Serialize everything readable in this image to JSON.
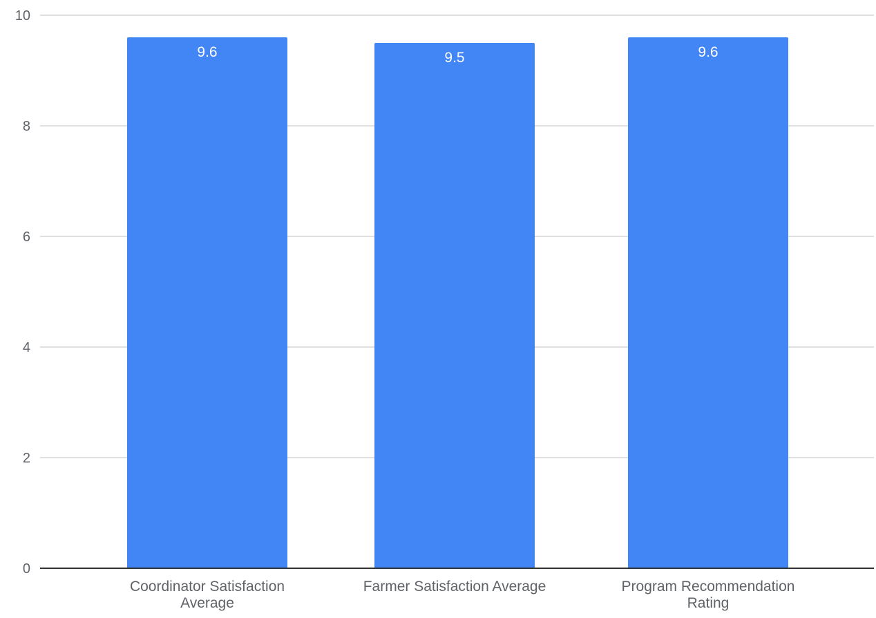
{
  "chart_data": {
    "type": "bar",
    "categories": [
      [
        "Coordinator Satisfaction",
        "Average"
      ],
      [
        "Farmer Satisfaction Average"
      ],
      [
        "Program Recommendation",
        "Rating"
      ]
    ],
    "values": [
      9.6,
      9.5,
      9.6
    ],
    "data_labels": [
      "9.6",
      "9.5",
      "9.6"
    ],
    "yticks": [
      "0",
      "2",
      "4",
      "6",
      "8",
      "10"
    ],
    "ylim": [
      0,
      10
    ],
    "grid": true,
    "legend": "none",
    "title": "",
    "xlabel": "",
    "ylabel": "",
    "colors": {
      "bar": "#4285f4",
      "grid": "#e0e0e0",
      "baseline": "#333333",
      "text": "#5f6368",
      "data_label": "#ffffff"
    }
  }
}
